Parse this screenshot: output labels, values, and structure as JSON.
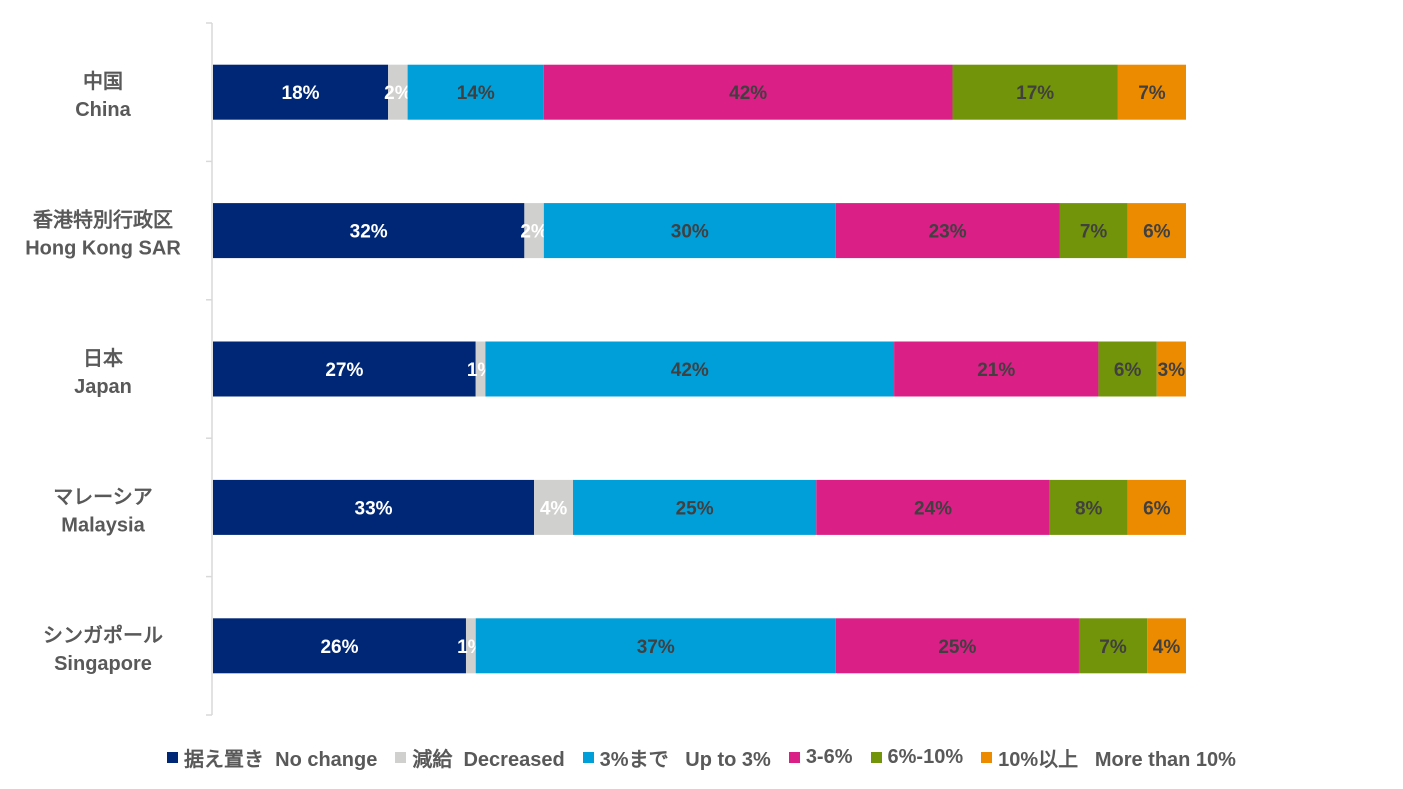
{
  "chart_data": {
    "type": "bar",
    "orientation": "horizontal",
    "stacked": true,
    "value_format": "percent",
    "xlim": [
      0,
      100
    ],
    "categories": [
      [
        "中国",
        "China"
      ],
      [
        "香港特別行政区",
        "Hong Kong SAR"
      ],
      [
        "日本",
        "Japan"
      ],
      [
        "マレーシア",
        "Malaysia"
      ],
      [
        "シンガポール",
        "Singapore"
      ]
    ],
    "series": [
      {
        "name": "据え置き  No change",
        "color": "#002776",
        "label_color": "#ffffff",
        "values": [
          18,
          32,
          27,
          33,
          26
        ]
      },
      {
        "name": "減給  Decreased",
        "color": "#d0d0ce",
        "label_color": "#ffffff",
        "values": [
          2,
          2,
          1,
          4,
          1
        ]
      },
      {
        "name": "3%まで   Up to 3%",
        "color": "#009fda",
        "label_color": "#404040",
        "values": [
          14,
          30,
          42,
          25,
          37
        ]
      },
      {
        "name": "3-6%",
        "color": "#da1f86",
        "label_color": "#404040",
        "values": [
          42,
          23,
          21,
          24,
          25
        ]
      },
      {
        "name": "6%-10%",
        "color": "#72940a",
        "label_color": "#404040",
        "values": [
          17,
          7,
          6,
          8,
          7
        ]
      },
      {
        "name": "10%以上   More than 10%",
        "color": "#ed8b00",
        "label_color": "#404040",
        "values": [
          7,
          6,
          3,
          6,
          4
        ]
      }
    ],
    "legend": "bottom",
    "grid": false,
    "title": "",
    "xlabel": "",
    "ylabel": ""
  }
}
